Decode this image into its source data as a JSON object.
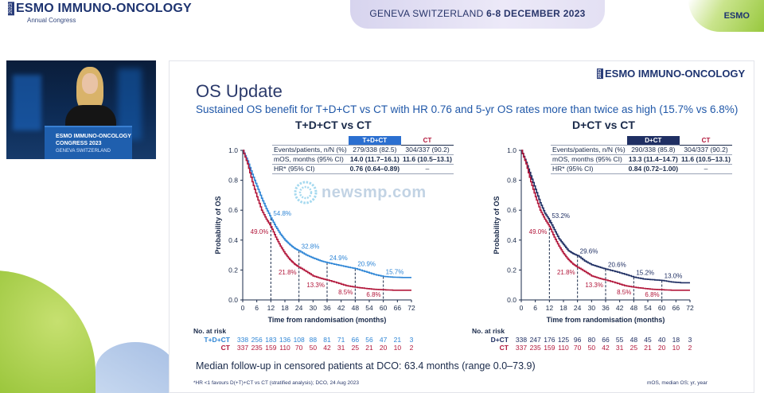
{
  "header": {
    "logo_year": "2023",
    "logo_text": "ESMO IMMUNO-ONCOLOGY",
    "logo_subtitle": "Annual Congress",
    "location_pre": "GENEVA SWITZERLAND ",
    "location_dates": "6-8 DECEMBER 2023",
    "brand_mark": "ESMO"
  },
  "video": {
    "podium_line1": "ESMO IMMUNO-ONCOLOGY",
    "podium_line2": "CONGRESS 2023",
    "podium_line3": "GENEVA SWITZERLAND"
  },
  "slide": {
    "logo_year": "2023",
    "logo": "ESMO IMMUNO-ONCOLOGY",
    "title": "OS Update",
    "subtitle": "Sustained OS benefit for T+D+CT vs CT with HR 0.76 and 5-yr OS rates more than twice as high (15.7% vs 6.8%)",
    "median_followup": "Median follow-up in censored patients at DCO: 63.4 months (range 0.0–73.9)",
    "footnote": "*HR <1 favours D(+T)+CT vs CT (stratified analysis); DCO, 24 Aug 2023",
    "footnote_right": "mOS, median OS; yr, year",
    "risk_header": "No. at risk"
  },
  "watermark": {
    "text": "newsmp.com"
  },
  "colors": {
    "tr": "#2f86d6",
    "ct": "#b2173b",
    "dct": "#1f2f63",
    "accent": "#1f57a8"
  },
  "chart_data": [
    {
      "type": "line",
      "panel_title": "T+D+CT vs CT",
      "xlabel": "Time from randomisation (months)",
      "ylabel": "Probability of OS",
      "xlim": [
        0,
        72
      ],
      "ylim": [
        0,
        1.0
      ],
      "xticks": [
        0,
        6,
        12,
        18,
        24,
        30,
        36,
        42,
        48,
        54,
        60,
        66,
        72
      ],
      "yticks": [
        0.0,
        0.2,
        0.4,
        0.6,
        0.8,
        1.0
      ],
      "table": {
        "col_headers": [
          "",
          "T+D+CT",
          "CT"
        ],
        "rows": [
          {
            "label": "Events/patients, n/N (%)",
            "a": "279/338 (82.5)",
            "b": "304/337 (90.2)",
            "label_bold_part": ""
          },
          {
            "label": "mOS, months (95% CI)",
            "a": "14.0 (11.7–16.1)",
            "b": "11.6 (10.5–13.1)",
            "label_bold_part": "mOS"
          },
          {
            "label": "HR* (95% CI)",
            "a": "0.76 (0.64–0.89)",
            "b": "–",
            "label_bold_part": "HR*"
          }
        ]
      },
      "series": [
        {
          "name": "T+D+CT",
          "x": [
            0,
            2,
            4,
            6,
            8,
            10,
            12,
            14,
            16,
            18,
            20,
            22,
            24,
            27,
            30,
            33,
            36,
            40,
            44,
            48,
            52,
            56,
            60,
            64,
            68,
            72
          ],
          "y": [
            1.0,
            0.93,
            0.84,
            0.76,
            0.68,
            0.61,
            0.548,
            0.49,
            0.44,
            0.4,
            0.37,
            0.345,
            0.328,
            0.3,
            0.28,
            0.262,
            0.249,
            0.235,
            0.222,
            0.209,
            0.19,
            0.17,
            0.157,
            0.152,
            0.15,
            0.15
          ],
          "annotations": [
            {
              "x": 12,
              "y": 0.548,
              "label": "54.8%"
            },
            {
              "x": 24,
              "y": 0.328,
              "label": "32.8%"
            },
            {
              "x": 36,
              "y": 0.249,
              "label": "24.9%"
            },
            {
              "x": 48,
              "y": 0.209,
              "label": "20.9%"
            },
            {
              "x": 60,
              "y": 0.157,
              "label": "15.7%"
            }
          ]
        },
        {
          "name": "CT",
          "x": [
            0,
            2,
            4,
            6,
            8,
            10,
            12,
            14,
            16,
            18,
            20,
            22,
            24,
            27,
            30,
            33,
            36,
            40,
            44,
            48,
            52,
            56,
            60,
            64,
            68,
            72
          ],
          "y": [
            1.0,
            0.91,
            0.79,
            0.69,
            0.6,
            0.54,
            0.49,
            0.42,
            0.36,
            0.31,
            0.27,
            0.24,
            0.218,
            0.19,
            0.16,
            0.145,
            0.133,
            0.115,
            0.095,
            0.085,
            0.077,
            0.071,
            0.068,
            0.065,
            0.065,
            0.065
          ],
          "annotations": [
            {
              "x": 12,
              "y": 0.49,
              "label": "49.0%"
            },
            {
              "x": 24,
              "y": 0.218,
              "label": "21.8%"
            },
            {
              "x": 36,
              "y": 0.133,
              "label": "13.3%"
            },
            {
              "x": 48,
              "y": 0.085,
              "label": "8.5%"
            },
            {
              "x": 60,
              "y": 0.068,
              "label": "6.8%"
            }
          ]
        }
      ],
      "at_risk": [
        {
          "name": "T+D+CT",
          "values": [
            338,
            256,
            183,
            136,
            108,
            88,
            81,
            71,
            66,
            56,
            47,
            21,
            3
          ]
        },
        {
          "name": "CT",
          "values": [
            337,
            235,
            159,
            110,
            70,
            50,
            42,
            31,
            25,
            21,
            20,
            10,
            2
          ]
        }
      ]
    },
    {
      "type": "line",
      "panel_title": "D+CT vs CT",
      "xlabel": "Time from randomisation (months)",
      "ylabel": "Probability of OS",
      "xlim": [
        0,
        72
      ],
      "ylim": [
        0,
        1.0
      ],
      "xticks": [
        0,
        6,
        12,
        18,
        24,
        30,
        36,
        42,
        48,
        54,
        60,
        66,
        72
      ],
      "yticks": [
        0.0,
        0.2,
        0.4,
        0.6,
        0.8,
        1.0
      ],
      "table": {
        "col_headers": [
          "",
          "D+CT",
          "CT"
        ],
        "rows": [
          {
            "label": "Events/patients, n/N (%)",
            "a": "290/338 (85.8)",
            "b": "304/337 (90.2)",
            "label_bold_part": ""
          },
          {
            "label": "mOS, months (95% CI)",
            "a": "13.3 (11.4–14.7)",
            "b": "11.6 (10.5–13.1)",
            "label_bold_part": "mOS"
          },
          {
            "label": "HR* (95% CI)",
            "a": "0.84 (0.72–1.00)",
            "b": "–",
            "label_bold_part": "HR*"
          }
        ]
      },
      "series": [
        {
          "name": "D+CT",
          "x": [
            0,
            2,
            4,
            6,
            8,
            10,
            12,
            14,
            16,
            18,
            20,
            22,
            24,
            27,
            30,
            33,
            36,
            40,
            44,
            48,
            52,
            56,
            60,
            64,
            68,
            72
          ],
          "y": [
            1.0,
            0.92,
            0.83,
            0.74,
            0.65,
            0.58,
            0.532,
            0.47,
            0.41,
            0.37,
            0.33,
            0.31,
            0.296,
            0.26,
            0.235,
            0.22,
            0.206,
            0.19,
            0.172,
            0.152,
            0.14,
            0.135,
            0.13,
            0.12,
            0.115,
            0.115
          ],
          "annotations": [
            {
              "x": 12,
              "y": 0.532,
              "label": "53.2%"
            },
            {
              "x": 24,
              "y": 0.296,
              "label": "29.6%"
            },
            {
              "x": 36,
              "y": 0.206,
              "label": "20.6%"
            },
            {
              "x": 48,
              "y": 0.152,
              "label": "15.2%"
            },
            {
              "x": 60,
              "y": 0.13,
              "label": "13.0%"
            }
          ]
        },
        {
          "name": "CT",
          "x": [
            0,
            2,
            4,
            6,
            8,
            10,
            12,
            14,
            16,
            18,
            20,
            22,
            24,
            27,
            30,
            33,
            36,
            40,
            44,
            48,
            52,
            56,
            60,
            64,
            68,
            72
          ],
          "y": [
            1.0,
            0.91,
            0.79,
            0.69,
            0.6,
            0.54,
            0.49,
            0.42,
            0.36,
            0.31,
            0.27,
            0.24,
            0.218,
            0.19,
            0.16,
            0.145,
            0.133,
            0.115,
            0.095,
            0.085,
            0.077,
            0.071,
            0.068,
            0.065,
            0.065,
            0.065
          ],
          "annotations": [
            {
              "x": 12,
              "y": 0.49,
              "label": "49.0%"
            },
            {
              "x": 24,
              "y": 0.218,
              "label": "21.8%"
            },
            {
              "x": 36,
              "y": 0.133,
              "label": "13.3%"
            },
            {
              "x": 48,
              "y": 0.085,
              "label": "8.5%"
            },
            {
              "x": 60,
              "y": 0.068,
              "label": "6.8%"
            }
          ]
        }
      ],
      "at_risk": [
        {
          "name": "D+CT",
          "values": [
            338,
            247,
            176,
            125,
            96,
            80,
            66,
            55,
            48,
            45,
            40,
            18,
            3
          ]
        },
        {
          "name": "CT",
          "values": [
            337,
            235,
            159,
            110,
            70,
            50,
            42,
            31,
            25,
            21,
            20,
            10,
            2
          ]
        }
      ]
    }
  ]
}
